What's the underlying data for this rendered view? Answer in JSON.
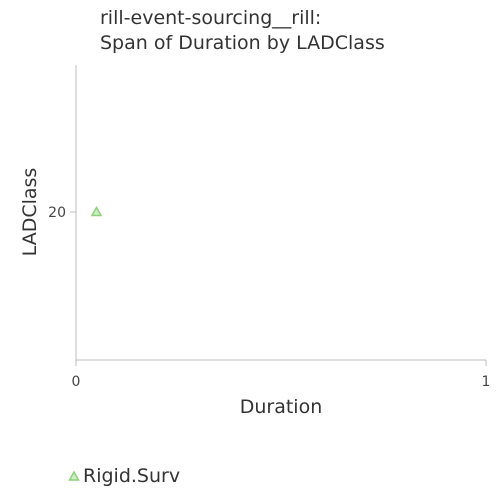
{
  "chart_data": {
    "type": "scatter",
    "title_lines": [
      "rill-event-sourcing__rill:",
      "Span of Duration by LADClass"
    ],
    "xlabel": "Duration",
    "ylabel": "LADClass",
    "x_ticks": [
      "0",
      "1"
    ],
    "y_ticks": [
      "20"
    ],
    "xlim": [
      0,
      1
    ],
    "y_tick_value": 20,
    "grid": false,
    "legend_position": "bottom-left",
    "series": [
      {
        "name": "Rigid.Surv",
        "color": "#8fd07a",
        "marker": "triangle",
        "points": [
          {
            "x": 0.05,
            "y": 20
          }
        ]
      }
    ]
  }
}
